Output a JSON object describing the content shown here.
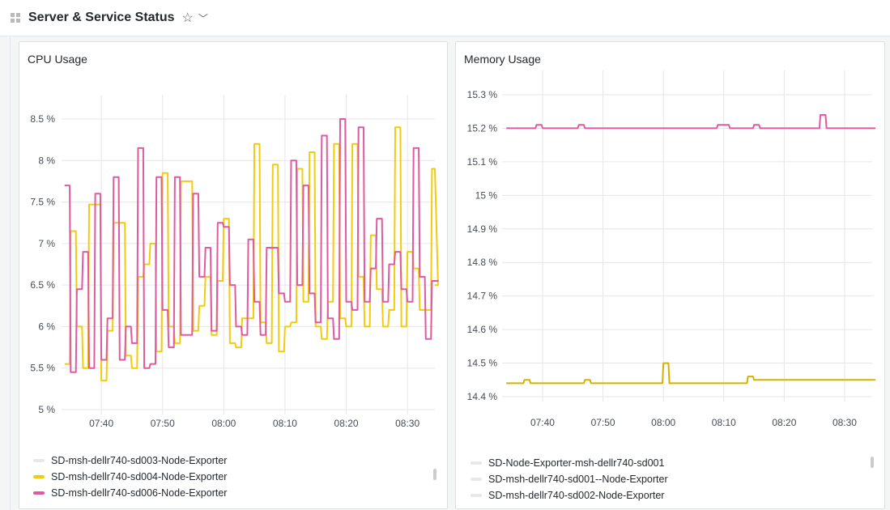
{
  "header": {
    "title": "Server & Service Status",
    "star_icon": "star-icon",
    "chevron_icon": "chevron-down-icon"
  },
  "panels": [
    {
      "title": "CPU Usage",
      "legend": [
        {
          "label": "SD-msh-dellr740-sd003-Node-Exporter",
          "color": "#e8e8e8"
        },
        {
          "label": "SD-msh-dellr740-sd004-Node-Exporter",
          "color": "#f2cc0c"
        },
        {
          "label": "SD-msh-dellr740-sd006-Node-Exporter",
          "color": "#e05aa0"
        }
      ]
    },
    {
      "title": "Memory Usage",
      "legend": [
        {
          "label": "SD-Node-Exporter-msh-dellr740-sd001",
          "color": "#e8e8e8"
        },
        {
          "label": "SD-msh-dellr740-sd001--Node-Exporter",
          "color": "#e8e8e8"
        },
        {
          "label": "SD-msh-dellr740-sd002-Node-Exporter",
          "color": "#e8e8e8"
        }
      ]
    }
  ],
  "chart_data": [
    {
      "type": "line",
      "title": "CPU Usage",
      "ylim": [
        5,
        8.5
      ],
      "yticks": [
        "5 %",
        "5.5 %",
        "6 %",
        "6.5 %",
        "7 %",
        "7.5 %",
        "8 %",
        "8.5 %"
      ],
      "ytick_values": [
        5,
        5.5,
        6,
        6.5,
        7,
        7.5,
        8,
        8.5
      ],
      "xticks": [
        "07:40",
        "07:50",
        "08:00",
        "08:10",
        "08:20",
        "08:30"
      ],
      "x_start": "07:34",
      "x_step_min": 1,
      "series": [
        {
          "name": "SD-msh-dellr740-sd004-Node-Exporter",
          "color": "#f2cc0c",
          "values": [
            5.55,
            7.15,
            6.0,
            5.5,
            7.47,
            7.47,
            5.35,
            5.95,
            7.25,
            7.25,
            5.65,
            5.5,
            6.6,
            6.75,
            7.0,
            5.7,
            7.85,
            6.0,
            5.8,
            7.75,
            7.75,
            5.95,
            6.25,
            6.6,
            5.9,
            6.55,
            7.3,
            5.8,
            5.75,
            6.1,
            6.1,
            8.2,
            6.05,
            5.8,
            7.95,
            5.7,
            6.0,
            6.05,
            7.9,
            6.3,
            8.1,
            6.0,
            5.85,
            6.3,
            8.2,
            6.1,
            6.0,
            8.2,
            6.6,
            6.0,
            7.1,
            6.45,
            6.0,
            6.2,
            8.4,
            6.0,
            6.9,
            6.7,
            6.2,
            6.2,
            7.9,
            6.5
          ]
        },
        {
          "name": "SD-msh-dellr740-sd006-Node-Exporter",
          "color": "#e05aa0",
          "values": [
            7.7,
            5.45,
            6.45,
            6.9,
            5.5,
            7.6,
            5.6,
            6.1,
            7.8,
            5.6,
            6.0,
            5.8,
            8.15,
            5.5,
            5.55,
            7.8,
            6.2,
            5.75,
            7.8,
            5.9,
            5.9,
            7.6,
            6.6,
            6.95,
            5.95,
            7.25,
            7.2,
            6.5,
            6.0,
            5.9,
            7.05,
            6.3,
            5.9,
            6.95,
            6.95,
            6.4,
            6.3,
            8.0,
            6.5,
            7.7,
            6.4,
            6.05,
            8.3,
            6.1,
            5.85,
            8.5,
            6.3,
            6.2,
            8.4,
            6.3,
            6.7,
            7.3,
            6.3,
            6.75,
            6.9,
            6.45,
            6.3,
            8.15,
            6.6,
            5.85,
            6.55,
            6.55
          ]
        }
      ]
    },
    {
      "type": "line",
      "title": "Memory Usage",
      "ylim": [
        14.4,
        15.3
      ],
      "yticks": [
        "14.4 %",
        "14.5 %",
        "14.6 %",
        "14.7 %",
        "14.8 %",
        "14.9 %",
        "15 %",
        "15.1 %",
        "15.2 %",
        "15.3 %"
      ],
      "ytick_values": [
        14.4,
        14.5,
        14.6,
        14.7,
        14.8,
        14.9,
        15.0,
        15.1,
        15.2,
        15.3
      ],
      "xticks": [
        "07:40",
        "07:50",
        "08:00",
        "08:10",
        "08:20",
        "08:30"
      ],
      "x_start": "07:34",
      "x_step_min": 1,
      "series": [
        {
          "color": "#e05aa0",
          "values": [
            15.2,
            15.2,
            15.2,
            15.2,
            15.2,
            15.21,
            15.2,
            15.2,
            15.2,
            15.2,
            15.2,
            15.2,
            15.21,
            15.2,
            15.2,
            15.2,
            15.2,
            15.2,
            15.2,
            15.2,
            15.2,
            15.2,
            15.2,
            15.2,
            15.2,
            15.2,
            15.2,
            15.2,
            15.2,
            15.2,
            15.2,
            15.2,
            15.2,
            15.2,
            15.2,
            15.21,
            15.21,
            15.2,
            15.2,
            15.2,
            15.2,
            15.21,
            15.2,
            15.2,
            15.2,
            15.2,
            15.2,
            15.2,
            15.2,
            15.2,
            15.2,
            15.2,
            15.24,
            15.2,
            15.2,
            15.2,
            15.2,
            15.2,
            15.2,
            15.2,
            15.2,
            15.2
          ]
        },
        {
          "color": "#d4b300",
          "values": [
            14.44,
            14.44,
            14.44,
            14.45,
            14.44,
            14.44,
            14.44,
            14.44,
            14.44,
            14.44,
            14.44,
            14.44,
            14.44,
            14.45,
            14.44,
            14.44,
            14.44,
            14.44,
            14.44,
            14.44,
            14.44,
            14.44,
            14.44,
            14.44,
            14.44,
            14.44,
            14.5,
            14.44,
            14.44,
            14.44,
            14.44,
            14.44,
            14.44,
            14.44,
            14.44,
            14.44,
            14.44,
            14.44,
            14.44,
            14.44,
            14.46,
            14.45,
            14.45,
            14.45,
            14.45,
            14.45,
            14.45,
            14.45,
            14.45,
            14.45,
            14.45,
            14.45,
            14.45,
            14.45,
            14.45,
            14.45,
            14.45,
            14.45,
            14.45,
            14.45,
            14.45,
            14.45
          ]
        }
      ]
    }
  ]
}
